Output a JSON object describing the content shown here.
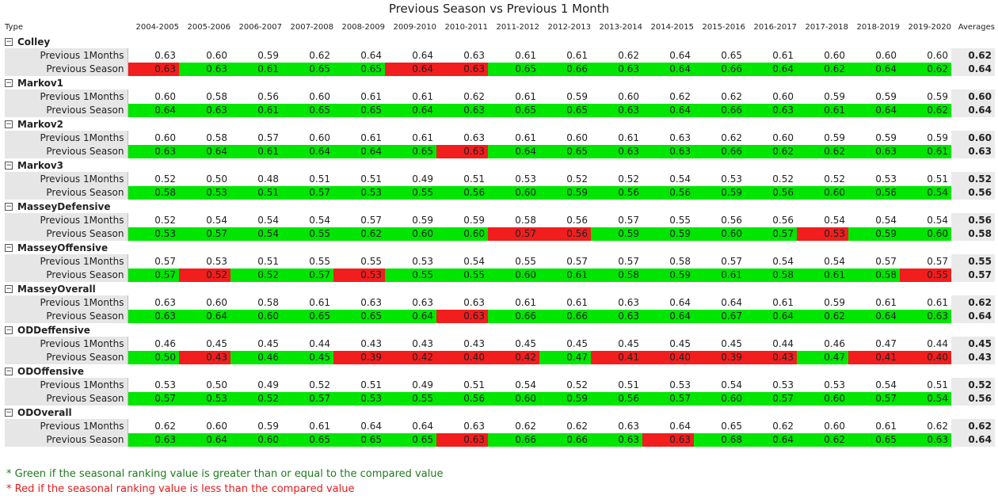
{
  "title": "Previous Season vs Previous 1 Month",
  "headers": {
    "type": "Type",
    "years": [
      "2004-2005",
      "2005-2006",
      "2006-2007",
      "2007-2008",
      "2008-2009",
      "2009-2010",
      "2010-2011",
      "2011-2012",
      "2012-2013",
      "2013-2014",
      "2014-2015",
      "2015-2016",
      "2016-2017",
      "2017-2018",
      "2018-2019",
      "2019-2020"
    ],
    "averages": "Averages"
  },
  "colors": {
    "green": "#00e600",
    "red": "#f21d1d"
  },
  "groups": [
    {
      "name": "Colley",
      "rows": [
        {
          "label": "Previous 1Months",
          "values": [
            "0.63",
            "0.60",
            "0.59",
            "0.62",
            "0.64",
            "0.64",
            "0.63",
            "0.61",
            "0.61",
            "0.62",
            "0.64",
            "0.65",
            "0.61",
            "0.60",
            "0.60",
            "0.60"
          ],
          "avg": "0.62"
        },
        {
          "label": "Previous Season",
          "values": [
            "0.63",
            "0.63",
            "0.61",
            "0.65",
            "0.65",
            "0.64",
            "0.63",
            "0.65",
            "0.66",
            "0.63",
            "0.64",
            "0.66",
            "0.64",
            "0.62",
            "0.64",
            "0.62"
          ],
          "avg": "0.64",
          "status": [
            "r",
            "g",
            "g",
            "g",
            "g",
            "r",
            "r",
            "g",
            "g",
            "g",
            "g",
            "g",
            "g",
            "g",
            "g",
            "g"
          ]
        }
      ]
    },
    {
      "name": "Markov1",
      "rows": [
        {
          "label": "Previous 1Months",
          "values": [
            "0.60",
            "0.58",
            "0.56",
            "0.60",
            "0.61",
            "0.61",
            "0.62",
            "0.61",
            "0.59",
            "0.60",
            "0.62",
            "0.62",
            "0.60",
            "0.59",
            "0.59",
            "0.59"
          ],
          "avg": "0.60"
        },
        {
          "label": "Previous Season",
          "values": [
            "0.64",
            "0.63",
            "0.61",
            "0.65",
            "0.65",
            "0.64",
            "0.63",
            "0.65",
            "0.65",
            "0.63",
            "0.64",
            "0.66",
            "0.63",
            "0.61",
            "0.64",
            "0.62"
          ],
          "avg": "0.64",
          "status": [
            "g",
            "g",
            "g",
            "g",
            "g",
            "g",
            "g",
            "g",
            "g",
            "g",
            "g",
            "g",
            "g",
            "g",
            "g",
            "g"
          ]
        }
      ]
    },
    {
      "name": "Markov2",
      "rows": [
        {
          "label": "Previous 1Months",
          "values": [
            "0.60",
            "0.58",
            "0.57",
            "0.60",
            "0.61",
            "0.61",
            "0.63",
            "0.61",
            "0.60",
            "0.61",
            "0.63",
            "0.62",
            "0.60",
            "0.59",
            "0.59",
            "0.59"
          ],
          "avg": "0.60"
        },
        {
          "label": "Previous Season",
          "values": [
            "0.63",
            "0.64",
            "0.61",
            "0.64",
            "0.64",
            "0.65",
            "0.63",
            "0.64",
            "0.65",
            "0.63",
            "0.63",
            "0.66",
            "0.62",
            "0.62",
            "0.63",
            "0.61"
          ],
          "avg": "0.63",
          "status": [
            "g",
            "g",
            "g",
            "g",
            "g",
            "g",
            "r",
            "g",
            "g",
            "g",
            "g",
            "g",
            "g",
            "g",
            "g",
            "g"
          ]
        }
      ]
    },
    {
      "name": "Markov3",
      "rows": [
        {
          "label": "Previous 1Months",
          "values": [
            "0.52",
            "0.50",
            "0.48",
            "0.51",
            "0.51",
            "0.49",
            "0.51",
            "0.53",
            "0.52",
            "0.52",
            "0.54",
            "0.53",
            "0.52",
            "0.52",
            "0.53",
            "0.51"
          ],
          "avg": "0.52"
        },
        {
          "label": "Previous Season",
          "values": [
            "0.58",
            "0.53",
            "0.51",
            "0.57",
            "0.53",
            "0.55",
            "0.56",
            "0.60",
            "0.59",
            "0.56",
            "0.56",
            "0.59",
            "0.56",
            "0.60",
            "0.56",
            "0.54"
          ],
          "avg": "0.56",
          "status": [
            "g",
            "g",
            "g",
            "g",
            "g",
            "g",
            "g",
            "g",
            "g",
            "g",
            "g",
            "g",
            "g",
            "g",
            "g",
            "g"
          ]
        }
      ]
    },
    {
      "name": "MasseyDefensive",
      "rows": [
        {
          "label": "Previous 1Months",
          "values": [
            "0.52",
            "0.54",
            "0.54",
            "0.54",
            "0.57",
            "0.59",
            "0.59",
            "0.58",
            "0.56",
            "0.57",
            "0.55",
            "0.56",
            "0.56",
            "0.54",
            "0.54",
            "0.54"
          ],
          "avg": "0.56"
        },
        {
          "label": "Previous Season",
          "values": [
            "0.53",
            "0.57",
            "0.54",
            "0.55",
            "0.62",
            "0.60",
            "0.60",
            "0.57",
            "0.56",
            "0.59",
            "0.59",
            "0.60",
            "0.57",
            "0.53",
            "0.59",
            "0.60"
          ],
          "avg": "0.58",
          "status": [
            "g",
            "g",
            "g",
            "g",
            "g",
            "g",
            "g",
            "r",
            "r",
            "g",
            "g",
            "g",
            "g",
            "r",
            "g",
            "g"
          ]
        }
      ]
    },
    {
      "name": "MasseyOffensive",
      "rows": [
        {
          "label": "Previous 1Months",
          "values": [
            "0.57",
            "0.53",
            "0.51",
            "0.55",
            "0.55",
            "0.53",
            "0.54",
            "0.55",
            "0.57",
            "0.57",
            "0.58",
            "0.57",
            "0.54",
            "0.54",
            "0.57",
            "0.57"
          ],
          "avg": "0.55"
        },
        {
          "label": "Previous Season",
          "values": [
            "0.57",
            "0.52",
            "0.52",
            "0.57",
            "0.53",
            "0.55",
            "0.55",
            "0.60",
            "0.61",
            "0.58",
            "0.59",
            "0.61",
            "0.58",
            "0.61",
            "0.58",
            "0.55"
          ],
          "avg": "0.57",
          "status": [
            "g",
            "r",
            "g",
            "g",
            "r",
            "g",
            "g",
            "g",
            "g",
            "g",
            "g",
            "g",
            "g",
            "g",
            "g",
            "r"
          ]
        }
      ]
    },
    {
      "name": "MasseyOverall",
      "rows": [
        {
          "label": "Previous 1Months",
          "values": [
            "0.63",
            "0.60",
            "0.58",
            "0.61",
            "0.63",
            "0.63",
            "0.63",
            "0.61",
            "0.61",
            "0.63",
            "0.64",
            "0.64",
            "0.61",
            "0.59",
            "0.61",
            "0.61"
          ],
          "avg": "0.62"
        },
        {
          "label": "Previous Season",
          "values": [
            "0.63",
            "0.64",
            "0.60",
            "0.65",
            "0.65",
            "0.64",
            "0.63",
            "0.66",
            "0.66",
            "0.63",
            "0.64",
            "0.67",
            "0.64",
            "0.62",
            "0.64",
            "0.63"
          ],
          "avg": "0.64",
          "status": [
            "g",
            "g",
            "g",
            "g",
            "g",
            "g",
            "r",
            "g",
            "g",
            "g",
            "g",
            "g",
            "g",
            "g",
            "g",
            "g"
          ]
        }
      ]
    },
    {
      "name": "ODDeffensive",
      "rows": [
        {
          "label": "Previous 1Months",
          "values": [
            "0.46",
            "0.45",
            "0.45",
            "0.44",
            "0.43",
            "0.43",
            "0.43",
            "0.45",
            "0.45",
            "0.45",
            "0.45",
            "0.45",
            "0.44",
            "0.46",
            "0.47",
            "0.44"
          ],
          "avg": "0.45"
        },
        {
          "label": "Previous Season",
          "values": [
            "0.50",
            "0.43",
            "0.46",
            "0.45",
            "0.39",
            "0.42",
            "0.40",
            "0.42",
            "0.47",
            "0.41",
            "0.40",
            "0.39",
            "0.43",
            "0.47",
            "0.41",
            "0.40"
          ],
          "avg": "0.43",
          "status": [
            "g",
            "r",
            "g",
            "g",
            "r",
            "r",
            "r",
            "r",
            "g",
            "r",
            "r",
            "r",
            "r",
            "g",
            "r",
            "r"
          ]
        }
      ]
    },
    {
      "name": "ODOffensive",
      "rows": [
        {
          "label": "Previous 1Months",
          "values": [
            "0.53",
            "0.50",
            "0.49",
            "0.52",
            "0.51",
            "0.49",
            "0.51",
            "0.54",
            "0.52",
            "0.51",
            "0.53",
            "0.54",
            "0.53",
            "0.53",
            "0.54",
            "0.51"
          ],
          "avg": "0.52"
        },
        {
          "label": "Previous Season",
          "values": [
            "0.57",
            "0.53",
            "0.52",
            "0.57",
            "0.53",
            "0.55",
            "0.56",
            "0.60",
            "0.59",
            "0.56",
            "0.57",
            "0.60",
            "0.57",
            "0.60",
            "0.57",
            "0.54"
          ],
          "avg": "0.56",
          "status": [
            "g",
            "g",
            "g",
            "g",
            "g",
            "g",
            "g",
            "g",
            "g",
            "g",
            "g",
            "g",
            "g",
            "g",
            "g",
            "g"
          ]
        }
      ]
    },
    {
      "name": "ODOverall",
      "rows": [
        {
          "label": "Previous 1Months",
          "values": [
            "0.62",
            "0.60",
            "0.59",
            "0.61",
            "0.64",
            "0.64",
            "0.63",
            "0.62",
            "0.62",
            "0.63",
            "0.64",
            "0.65",
            "0.62",
            "0.60",
            "0.61",
            "0.62"
          ],
          "avg": "0.62"
        },
        {
          "label": "Previous Season",
          "values": [
            "0.63",
            "0.64",
            "0.60",
            "0.65",
            "0.65",
            "0.65",
            "0.63",
            "0.66",
            "0.66",
            "0.63",
            "0.63",
            "0.68",
            "0.64",
            "0.62",
            "0.65",
            "0.63"
          ],
          "avg": "0.64",
          "status": [
            "g",
            "g",
            "g",
            "g",
            "g",
            "g",
            "r",
            "g",
            "g",
            "g",
            "r",
            "g",
            "g",
            "g",
            "g",
            "g"
          ]
        }
      ]
    }
  ],
  "legend": {
    "green": "* Green if the seasonal ranking value is greater than or equal to the compared value",
    "red": "* Red if the seasonal ranking value is less than the compared value"
  }
}
